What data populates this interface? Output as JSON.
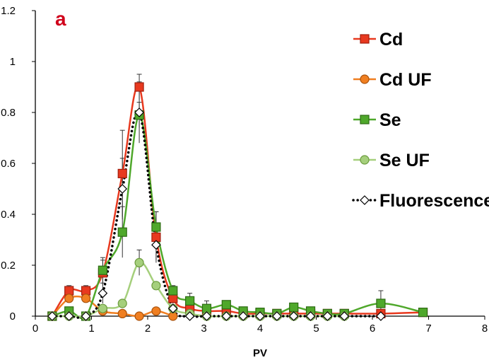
{
  "chart_data": {
    "type": "line",
    "panel_label": "a",
    "panel_label_color": "#d0021b",
    "xlabel": "PV",
    "ylabel": "",
    "xlim": [
      0,
      8
    ],
    "ylim": [
      0,
      1.2
    ],
    "x_ticks": [
      "0",
      "1",
      "2",
      "3",
      "4",
      "5",
      "6",
      "7",
      "8"
    ],
    "y_ticks": [
      "0",
      "0.2",
      "0.4",
      "0.6",
      "0.8",
      "1",
      "1.2"
    ],
    "grid": false,
    "legend_position": "right",
    "series": [
      {
        "name": "Cd",
        "color": "#e8391f",
        "edge": "#a11f0f",
        "marker": "square",
        "line_style": "solid",
        "x": [
          0.3,
          0.6,
          0.9,
          1.2,
          1.55,
          1.85,
          2.15,
          2.45,
          2.75,
          3.05,
          3.4,
          3.7,
          4.0,
          4.3,
          4.6,
          4.9,
          5.2,
          5.5,
          6.15,
          6.9
        ],
        "y": [
          0.0,
          0.1,
          0.1,
          0.17,
          0.56,
          0.9,
          0.31,
          0.07,
          0.03,
          0.02,
          0.02,
          0.01,
          0.01,
          0.01,
          0.01,
          0.01,
          0.01,
          0.01,
          0.01,
          0.015
        ],
        "err": [
          0,
          0.02,
          0.02,
          0.05,
          0.17,
          0.05,
          0.1,
          0.02,
          0,
          0,
          0,
          0,
          0,
          0,
          0,
          0,
          0,
          0,
          0,
          0
        ]
      },
      {
        "name": "Cd UF",
        "color": "#f07f21",
        "edge": "#a8520c",
        "marker": "circle",
        "line_style": "solid",
        "x": [
          0.3,
          0.6,
          0.9,
          1.2,
          1.55,
          1.85,
          2.15,
          2.45
        ],
        "y": [
          0.0,
          0.07,
          0.07,
          0.02,
          0.01,
          0.0,
          0.02,
          0.0
        ],
        "err": [
          0,
          0,
          0,
          0,
          0,
          0,
          0,
          0
        ]
      },
      {
        "name": "Se",
        "color": "#4fa82b",
        "edge": "#2e6b14",
        "marker": "square",
        "line_style": "solid",
        "x": [
          0.3,
          0.6,
          0.9,
          1.2,
          1.55,
          1.85,
          2.15,
          2.45,
          2.75,
          3.05,
          3.4,
          3.7,
          4.0,
          4.3,
          4.6,
          4.9,
          5.2,
          5.5,
          6.15,
          6.9
        ],
        "y": [
          0.0,
          0.02,
          0.0,
          0.18,
          0.33,
          0.79,
          0.35,
          0.1,
          0.06,
          0.03,
          0.045,
          0.02,
          0.015,
          0.01,
          0.035,
          0.02,
          0.01,
          0.01,
          0.05,
          0.015
        ],
        "err": [
          0,
          0,
          0,
          0.05,
          0.1,
          0.05,
          0.06,
          0.02,
          0.03,
          0.03,
          0,
          0,
          0,
          0,
          0,
          0.01,
          0,
          0,
          0.05,
          0
        ]
      },
      {
        "name": "Se UF",
        "color": "#a5cf7c",
        "edge": "#6b9a3d",
        "marker": "circle",
        "line_style": "solid",
        "x": [
          0.3,
          0.6,
          0.9,
          1.2,
          1.55,
          1.85,
          2.15,
          2.45,
          2.75,
          3.05,
          3.4,
          3.7,
          4.0,
          4.3,
          4.6,
          4.9,
          5.2,
          5.5
        ],
        "y": [
          0.0,
          0.0,
          0.0,
          0.03,
          0.05,
          0.21,
          0.12,
          0.03,
          0.01,
          0.0,
          0.0,
          0.0,
          0.0,
          0.0,
          0.0,
          0.0,
          0.0,
          0.0
        ],
        "err": [
          0,
          0,
          0,
          0,
          0,
          0.05,
          0,
          0,
          0,
          0,
          0,
          0,
          0,
          0,
          0,
          0,
          0,
          0
        ]
      },
      {
        "name": "Fluorescence",
        "color": "#000000",
        "edge": "#000000",
        "marker": "diamond",
        "line_style": "dotted",
        "x": [
          0.3,
          0.6,
          0.9,
          1.2,
          1.55,
          1.85,
          2.15,
          2.45,
          2.75,
          3.05,
          3.4,
          3.7,
          4.0,
          4.3,
          4.6,
          4.9,
          5.2,
          5.5,
          6.15
        ],
        "y": [
          0.0,
          0.0,
          0.0,
          0.09,
          0.5,
          0.8,
          0.28,
          0.03,
          0.0,
          0.0,
          0.0,
          0.0,
          0.0,
          0.0,
          0.0,
          0.0,
          0.0,
          0.0,
          0.0
        ],
        "err": [
          0,
          0,
          0,
          0.04,
          0.12,
          0.12,
          0.06,
          0,
          0,
          0,
          0,
          0,
          0,
          0,
          0,
          0,
          0,
          0,
          0
        ]
      }
    ]
  }
}
